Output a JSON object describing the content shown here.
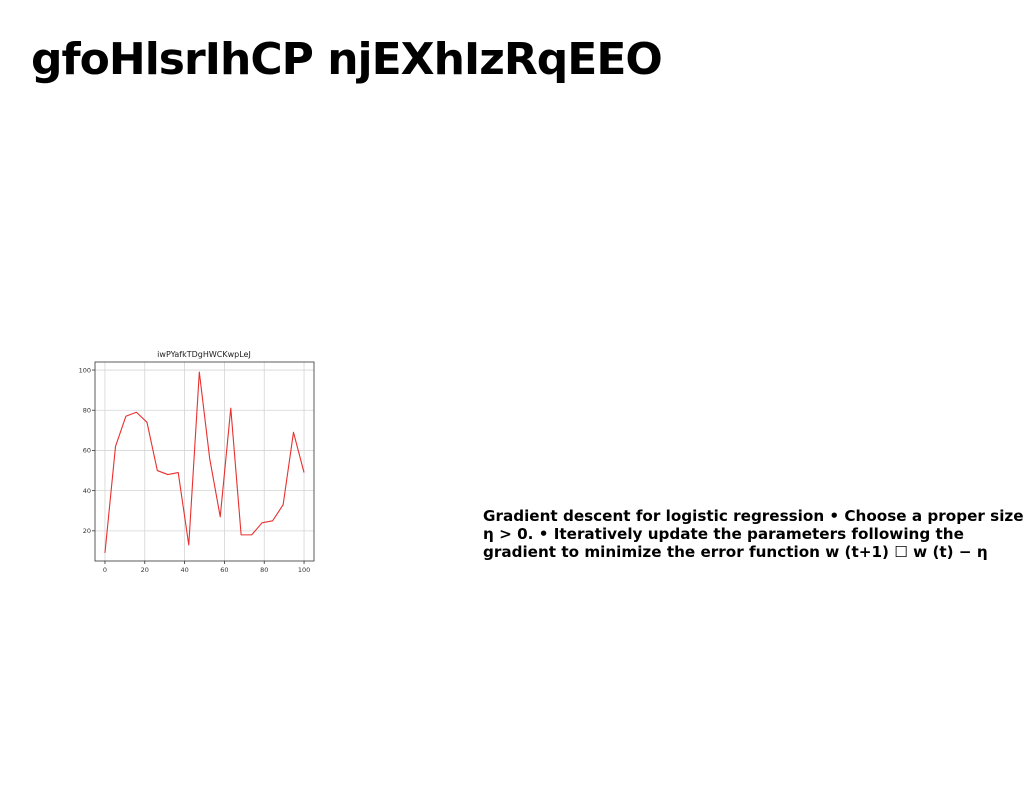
{
  "slide": {
    "title": "gfoHlsrIhCP njEXhIzRqEEO",
    "body_text": "Gradient descent for logistic regression • Choose a proper size η > 0. • Iteratively update the parameters following the gradient to minimize the error function w (t+1) ☐ w (t) − η"
  },
  "chart_data": {
    "type": "line",
    "title": "iwPYafkTDgHWCKwpLeJ",
    "xlabel": "",
    "ylabel": "",
    "xlim": [
      -5,
      105
    ],
    "ylim": [
      5,
      104
    ],
    "xticks": [
      0,
      20,
      40,
      60,
      80,
      100
    ],
    "yticks": [
      20,
      40,
      60,
      80,
      100
    ],
    "grid": true,
    "line_color": "#e8302e",
    "series": [
      {
        "x": [
          0,
          5.3,
          10.5,
          15.8,
          21.1,
          26.3,
          31.6,
          36.8,
          42.1,
          47.4,
          52.6,
          57.9,
          63.2,
          68.4,
          73.7,
          78.9,
          84.2,
          89.5,
          94.7,
          100
        ],
        "values": [
          9,
          62,
          77,
          79,
          74,
          50,
          48,
          49,
          13,
          99,
          56,
          27,
          81,
          18,
          18,
          24,
          25,
          33,
          69,
          49
        ]
      }
    ]
  }
}
